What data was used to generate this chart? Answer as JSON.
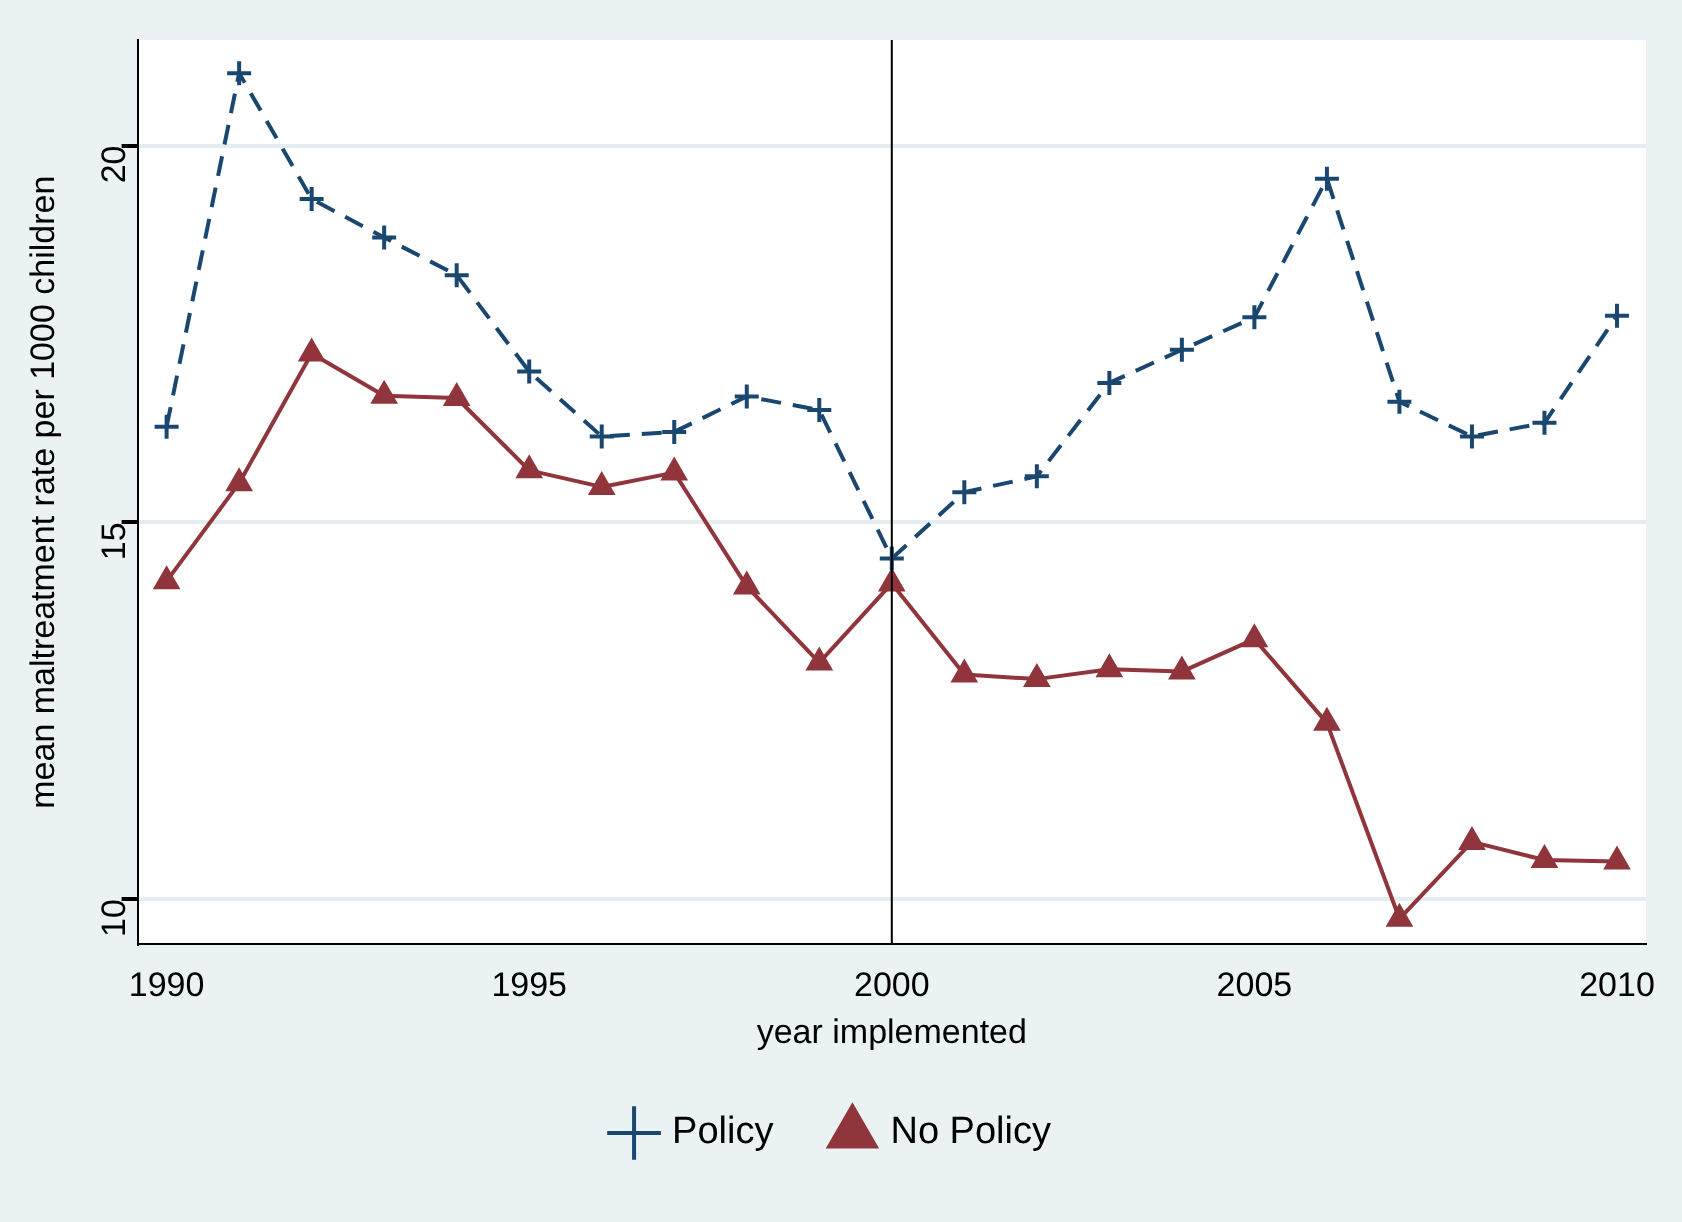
{
  "chart_data": {
    "type": "line",
    "xlabel": "year implemented",
    "ylabel": "mean maltreatment rate per 1000 children",
    "x": [
      1990,
      1991,
      1992,
      1993,
      1994,
      1995,
      1996,
      1997,
      1998,
      1999,
      2000,
      2001,
      2002,
      2003,
      2004,
      2005,
      2006,
      2007,
      2008,
      2009,
      2010
    ],
    "series": [
      {
        "name": "Policy",
        "color": "#1a476f",
        "marker": "cross",
        "line_style": "dashed",
        "values": [
          16.27,
          20.96,
          19.29,
          18.78,
          18.28,
          17.0,
          16.14,
          16.2,
          16.67,
          16.49,
          14.52,
          15.4,
          15.61,
          16.85,
          17.29,
          17.72,
          19.56,
          16.6,
          16.14,
          16.32,
          17.74
        ]
      },
      {
        "name": "No Policy",
        "color": "#90353b",
        "marker": "triangle",
        "line_style": "solid",
        "values": [
          14.22,
          15.52,
          17.24,
          16.68,
          16.65,
          15.69,
          15.47,
          15.66,
          14.15,
          13.14,
          14.19,
          12.98,
          12.92,
          13.05,
          13.02,
          13.45,
          12.34,
          9.74,
          10.76,
          10.52,
          10.5
        ]
      }
    ],
    "xlim": [
      1989.6,
      2010.4
    ],
    "ylim": [
      9.4,
      21.4
    ],
    "xticks": [
      1990,
      1995,
      2000,
      2005,
      2010
    ],
    "yticks": [
      10,
      15,
      20
    ],
    "ref_lines": [
      {
        "axis": "x",
        "value": 2000,
        "color": "#000000"
      }
    ],
    "grid": "y",
    "legend": "bottom"
  }
}
